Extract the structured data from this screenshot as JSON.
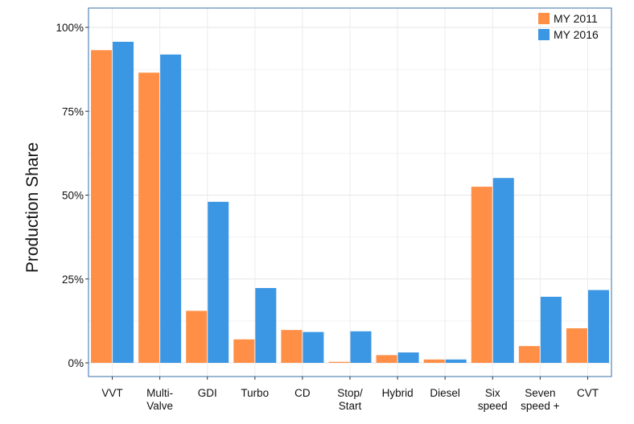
{
  "chart_data": {
    "type": "bar",
    "title": "",
    "xlabel": "",
    "ylabel": "Production Share",
    "ylim": [
      0,
      100
    ],
    "yticks": [
      0,
      25,
      50,
      75,
      100
    ],
    "ytick_labels": [
      "0%",
      "25%",
      "50%",
      "75%",
      "100%"
    ],
    "grid": true,
    "legend_position": "top-right",
    "categories": [
      [
        "VVT"
      ],
      [
        "Multi-",
        "Valve"
      ],
      [
        "GDI"
      ],
      [
        "Turbo"
      ],
      [
        "CD"
      ],
      [
        "Stop/",
        "Start"
      ],
      [
        "Hybrid"
      ],
      [
        "Diesel"
      ],
      [
        "Six",
        "speed"
      ],
      [
        "Seven",
        "speed +"
      ],
      [
        "CVT"
      ]
    ],
    "series": [
      {
        "name": "MY 2011",
        "color": "#FF8F47",
        "values": [
          93.2,
          86.5,
          15.5,
          7,
          9.8,
          0.3,
          2.3,
          1,
          52.5,
          5,
          10.3
        ]
      },
      {
        "name": "MY 2016",
        "color": "#3B96E4",
        "values": [
          95.7,
          91.9,
          48,
          22.3,
          9.2,
          9.4,
          3.1,
          1,
          55.1,
          19.7,
          21.7
        ]
      }
    ]
  }
}
